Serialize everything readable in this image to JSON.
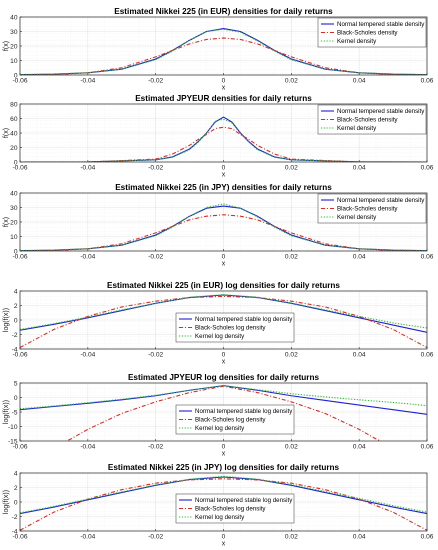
{
  "colors": {
    "nts": "#1f1fd6",
    "bs": "#e0281e",
    "kernel": "#22c422",
    "grid": "#e3e3e3",
    "axis": "#262626"
  },
  "chart_data": [
    {
      "type": "line",
      "title": "Estimated Nikkei 225 (in EUR) densities for daily returns",
      "xlabel": "x",
      "ylabel": "f(x)",
      "xlim": [
        -0.06,
        0.06
      ],
      "ylim": [
        0,
        40
      ],
      "xticks": [
        "-0.06",
        "-0.04",
        "-0.02",
        "0",
        "0.02",
        "0.04",
        "0.06"
      ],
      "yticks": [
        "0",
        "10",
        "20",
        "30",
        "40"
      ],
      "grid": true,
      "log": false,
      "legend_position": "top-right",
      "series": [
        {
          "name": "Normal tempered stable density",
          "style": "nts",
          "x": [
            -0.06,
            -0.05,
            -0.04,
            -0.03,
            -0.02,
            -0.015,
            -0.01,
            -0.005,
            0,
            0.005,
            0.01,
            0.015,
            0.02,
            0.03,
            0.04,
            0.05,
            0.06
          ],
          "y": [
            0.25,
            0.6,
            1.5,
            4,
            11,
            17,
            24,
            30,
            32,
            30,
            24,
            17,
            11,
            4,
            1.5,
            0.6,
            0.25
          ]
        },
        {
          "name": "Black-Scholes density",
          "style": "bs",
          "x": [
            -0.06,
            -0.05,
            -0.04,
            -0.03,
            -0.02,
            -0.015,
            -0.01,
            -0.005,
            0,
            0.005,
            0.01,
            0.015,
            0.02,
            0.03,
            0.04,
            0.05,
            0.06
          ],
          "y": [
            0.05,
            0.3,
            1.5,
            5,
            12.5,
            17,
            21.5,
            24.5,
            25.5,
            24.5,
            21.5,
            17,
            12.5,
            5,
            1.5,
            0.3,
            0.05
          ]
        },
        {
          "name": "Kernel density",
          "style": "kernel",
          "x": [
            -0.06,
            -0.05,
            -0.04,
            -0.03,
            -0.02,
            -0.015,
            -0.01,
            -0.005,
            0,
            0.005,
            0.01,
            0.015,
            0.02,
            0.03,
            0.04,
            0.05,
            0.06
          ],
          "y": [
            0.3,
            0.7,
            1.6,
            4,
            10.5,
            16.5,
            24,
            30,
            31.5,
            29.5,
            23.5,
            16.5,
            10.5,
            4,
            1.6,
            0.7,
            0.3
          ]
        }
      ]
    },
    {
      "type": "line",
      "title": "Estimated JPYEUR densities for daily returns",
      "xlabel": "x",
      "ylabel": "f(x)",
      "xlim": [
        -0.06,
        0.06
      ],
      "ylim": [
        0,
        80
      ],
      "xticks": [
        "-0.06",
        "-0.04",
        "-0.02",
        "0",
        "0.02",
        "0.04",
        "0.06"
      ],
      "yticks": [
        "0",
        "20",
        "40",
        "60",
        "80"
      ],
      "grid": true,
      "log": false,
      "legend_position": "top-right",
      "series": [
        {
          "name": "Normal tempered stable density",
          "style": "nts",
          "x": [
            -0.06,
            -0.04,
            -0.02,
            -0.015,
            -0.01,
            -0.0075,
            -0.005,
            -0.0025,
            0,
            0.0025,
            0.005,
            0.0075,
            0.01,
            0.015,
            0.02,
            0.04,
            0.06
          ],
          "y": [
            0,
            0.1,
            3,
            7,
            18,
            28,
            40,
            55,
            62,
            55,
            40,
            28,
            18,
            7,
            3,
            0.1,
            0
          ]
        },
        {
          "name": "Black-Scholes density",
          "style": "bs",
          "x": [
            -0.06,
            -0.04,
            -0.02,
            -0.015,
            -0.01,
            -0.0075,
            -0.005,
            -0.0025,
            0,
            0.0025,
            0.005,
            0.0075,
            0.01,
            0.015,
            0.02,
            0.04,
            0.06
          ],
          "y": [
            0,
            0,
            4,
            11,
            23,
            31,
            38,
            46,
            48,
            46,
            38,
            31,
            23,
            11,
            4,
            0,
            0
          ]
        },
        {
          "name": "Kernel density",
          "style": "kernel",
          "x": [
            -0.06,
            -0.04,
            -0.02,
            -0.015,
            -0.01,
            -0.0075,
            -0.005,
            -0.0025,
            0,
            0.0025,
            0.005,
            0.0075,
            0.01,
            0.015,
            0.02,
            0.04,
            0.06
          ],
          "y": [
            0,
            0.2,
            3,
            6.5,
            17,
            27,
            40,
            56,
            59,
            54,
            39,
            27,
            17,
            6.5,
            3,
            0.2,
            0
          ]
        }
      ]
    },
    {
      "type": "line",
      "title": "Estimated Nikkei 225 (in JPY) densities for daily returns",
      "xlabel": "x",
      "ylabel": "f(x)",
      "xlim": [
        -0.06,
        0.06
      ],
      "ylim": [
        0,
        40
      ],
      "xticks": [
        "-0.06",
        "-0.04",
        "-0.02",
        "0",
        "0.02",
        "0.04",
        "0.06"
      ],
      "yticks": [
        "0",
        "10",
        "20",
        "30",
        "40"
      ],
      "grid": true,
      "log": false,
      "legend_position": "top-right",
      "series": [
        {
          "name": "Normal tempered stable density",
          "style": "nts",
          "x": [
            -0.06,
            -0.05,
            -0.04,
            -0.03,
            -0.02,
            -0.015,
            -0.01,
            -0.005,
            0,
            0.005,
            0.01,
            0.015,
            0.02,
            0.03,
            0.04,
            0.05,
            0.06
          ],
          "y": [
            0.25,
            0.6,
            1.5,
            4,
            11,
            17,
            24,
            29.5,
            31,
            29.5,
            24,
            17,
            11,
            4,
            1.5,
            0.6,
            0.25
          ]
        },
        {
          "name": "Black-Scholes density",
          "style": "bs",
          "x": [
            -0.06,
            -0.05,
            -0.04,
            -0.03,
            -0.02,
            -0.015,
            -0.01,
            -0.005,
            0,
            0.005,
            0.01,
            0.015,
            0.02,
            0.03,
            0.04,
            0.05,
            0.06
          ],
          "y": [
            0.05,
            0.3,
            1.5,
            5,
            12.5,
            17,
            21.5,
            24,
            25,
            24,
            21.5,
            17,
            12.5,
            5,
            1.5,
            0.3,
            0.05
          ]
        },
        {
          "name": "Kernel density",
          "style": "kernel",
          "x": [
            -0.06,
            -0.05,
            -0.04,
            -0.03,
            -0.02,
            -0.015,
            -0.01,
            -0.005,
            0,
            0.005,
            0.01,
            0.015,
            0.02,
            0.03,
            0.04,
            0.05,
            0.06
          ],
          "y": [
            0.3,
            0.7,
            1.6,
            4,
            10.5,
            16.5,
            24,
            30,
            32.5,
            29.5,
            23.5,
            16.5,
            10.5,
            4,
            1.6,
            0.7,
            0.3
          ]
        }
      ]
    },
    {
      "type": "line",
      "title": "Estimated Nikkei 225 (in EUR) log densities for daily returns",
      "xlabel": "x",
      "ylabel": "log(f(x))",
      "xlim": [
        -0.06,
        0.06
      ],
      "ylim": [
        -4,
        4
      ],
      "xticks": [
        "-0.06",
        "-0.04",
        "-0.02",
        "0",
        "0.02",
        "0.04",
        "0.06"
      ],
      "yticks": [
        "-4",
        "-2",
        "0",
        "2",
        "4"
      ],
      "grid": true,
      "log": false,
      "legend_position": "center",
      "series": [
        {
          "name": "Normal tempered stable log density",
          "style": "nts",
          "x": [
            -0.06,
            -0.05,
            -0.04,
            -0.03,
            -0.02,
            -0.01,
            0,
            0.01,
            0.02,
            0.03,
            0.04,
            0.05,
            0.06
          ],
          "y": [
            -1.4,
            -0.6,
            0.3,
            1.3,
            2.3,
            3.1,
            3.45,
            3.1,
            2.3,
            1.3,
            0.3,
            -0.7,
            -1.7
          ]
        },
        {
          "name": "Black-Scholes log density",
          "style": "bs",
          "x": [
            -0.06,
            -0.05,
            -0.04,
            -0.03,
            -0.02,
            -0.01,
            0,
            0.01,
            0.02,
            0.03,
            0.04,
            0.05,
            0.06
          ],
          "y": [
            -3.8,
            -1.3,
            0.5,
            1.8,
            2.6,
            3.1,
            3.25,
            3.1,
            2.6,
            1.8,
            0.5,
            -1.3,
            -3.8
          ]
        },
        {
          "name": "Kernel log density",
          "style": "kernel",
          "x": [
            -0.06,
            -0.05,
            -0.04,
            -0.03,
            -0.02,
            -0.01,
            0,
            0.01,
            0.02,
            0.03,
            0.04,
            0.05,
            0.06
          ],
          "y": [
            -1.3,
            -0.5,
            0.4,
            1.4,
            2.3,
            3.15,
            3.5,
            3.15,
            2.35,
            1.4,
            0.5,
            -0.4,
            -1.1
          ]
        }
      ]
    },
    {
      "type": "line",
      "title": "Estimated JPYEUR log densities for daily returns",
      "xlabel": "x",
      "ylabel": "log(f(x))",
      "xlim": [
        -0.06,
        0.06
      ],
      "ylim": [
        -15,
        5
      ],
      "xticks": [
        "-0.06",
        "-0.04",
        "-0.02",
        "0",
        "0.02",
        "0.04",
        "0.06"
      ],
      "yticks": [
        "-15",
        "-10",
        "-5",
        "0",
        "5"
      ],
      "grid": true,
      "log": false,
      "legend_position": "center",
      "series": [
        {
          "name": "Normal tempered stable log density",
          "style": "nts",
          "x": [
            -0.06,
            -0.05,
            -0.04,
            -0.03,
            -0.02,
            -0.01,
            0,
            0.01,
            0.02,
            0.03,
            0.04,
            0.05,
            0.06
          ],
          "y": [
            -4.2,
            -3.1,
            -2.0,
            -0.8,
            0.6,
            2.5,
            4.1,
            2.5,
            0.6,
            -1.0,
            -2.6,
            -4.2,
            -5.8
          ]
        },
        {
          "name": "Black-Scholes log density",
          "style": "bs",
          "x": [
            -0.06,
            -0.05,
            -0.045,
            -0.04,
            -0.03,
            -0.02,
            -0.01,
            0,
            0.01,
            0.02,
            0.03,
            0.04,
            0.045,
            0.05
          ],
          "y": [
            -23,
            -17,
            -14.3,
            -11,
            -5.5,
            -1.5,
            1.7,
            3.9,
            1.7,
            -1.5,
            -5.5,
            -11,
            -14.3,
            -17
          ]
        },
        {
          "name": "Kernel log density",
          "style": "kernel",
          "x": [
            -0.06,
            -0.05,
            -0.04,
            -0.03,
            -0.02,
            -0.01,
            0,
            0.01,
            0.02,
            0.03,
            0.04,
            0.05,
            0.06
          ],
          "y": [
            -3.9,
            -2.9,
            -1.8,
            -0.6,
            0.8,
            2.5,
            4.1,
            2.7,
            1.3,
            0.2,
            -0.8,
            -1.7,
            -2.8
          ]
        }
      ]
    },
    {
      "type": "line",
      "title": "Estimated Nikkei 225 (in JPY) log densities for daily returns",
      "xlabel": "x",
      "ylabel": "log(f(x))",
      "xlim": [
        -0.06,
        0.06
      ],
      "ylim": [
        -4,
        4
      ],
      "xticks": [
        "-0.06",
        "-0.04",
        "-0.02",
        "0",
        "0.02",
        "0.04",
        "0.06"
      ],
      "yticks": [
        "-4",
        "-2",
        "0",
        "2",
        "4"
      ],
      "grid": true,
      "log": false,
      "legend_position": "center",
      "series": [
        {
          "name": "Normal tempered stable log density",
          "style": "nts",
          "x": [
            -0.06,
            -0.05,
            -0.04,
            -0.03,
            -0.02,
            -0.01,
            0,
            0.01,
            0.02,
            0.03,
            0.04,
            0.05,
            0.06
          ],
          "y": [
            -1.6,
            -0.7,
            0.3,
            1.3,
            2.3,
            3.1,
            3.45,
            3.1,
            2.3,
            1.3,
            0.3,
            -0.7,
            -1.6
          ]
        },
        {
          "name": "Black-Scholes log density",
          "style": "bs",
          "x": [
            -0.06,
            -0.05,
            -0.04,
            -0.03,
            -0.02,
            -0.01,
            0,
            0.01,
            0.02,
            0.03,
            0.04,
            0.05,
            0.06
          ],
          "y": [
            -3.9,
            -1.4,
            0.4,
            1.7,
            2.6,
            3.05,
            3.2,
            3.05,
            2.6,
            1.7,
            0.4,
            -1.4,
            -3.9
          ]
        },
        {
          "name": "Kernel log density",
          "style": "kernel",
          "x": [
            -0.06,
            -0.05,
            -0.04,
            -0.03,
            -0.02,
            -0.01,
            0,
            0.01,
            0.02,
            0.03,
            0.04,
            0.05,
            0.06
          ],
          "y": [
            -1.5,
            -0.6,
            0.4,
            1.4,
            2.35,
            3.15,
            3.55,
            3.15,
            2.4,
            1.45,
            0.5,
            -0.5,
            -1.4
          ]
        }
      ]
    }
  ]
}
